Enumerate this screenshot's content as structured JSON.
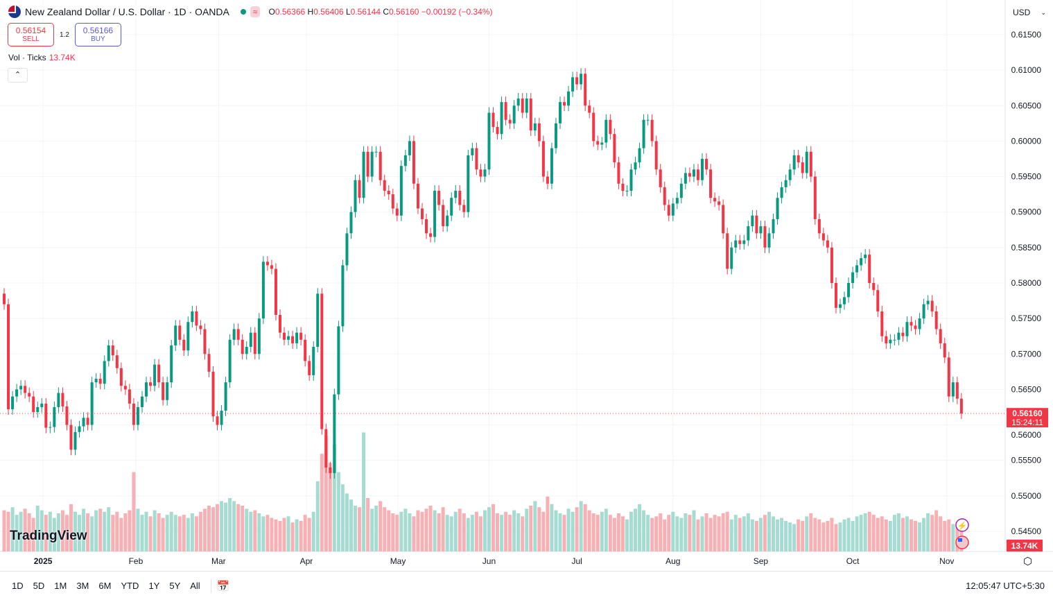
{
  "header": {
    "title": "New Zealand Dollar / U.S. Dollar · 1D · OANDA",
    "ohlc": {
      "o_label": "O",
      "o": "0.56366",
      "h_label": "H",
      "h": "0.56406",
      "l_label": "L",
      "l": "0.56144",
      "c_label": "C",
      "c": "0.56160",
      "change": "−0.00192 (−0.34%)"
    },
    "wave_icon": "≈"
  },
  "trade": {
    "sell_price": "0.56154",
    "sell_label": "SELL",
    "spread": "1.2",
    "buy_price": "0.56166",
    "buy_label": "BUY"
  },
  "volume_legend": {
    "label": "Vol · Ticks",
    "value": "13.74K"
  },
  "currency": {
    "value": "USD"
  },
  "bottom_bar": {
    "ranges": [
      "1D",
      "5D",
      "1M",
      "3M",
      "6M",
      "YTD",
      "1Y",
      "5Y",
      "All"
    ],
    "time": "12:05:47 UTC+5:30"
  },
  "logo": "TradingView",
  "colors": {
    "up": "#089981",
    "down": "#f23645",
    "vol_up": "#a6dbd1",
    "vol_down": "#f7b0b3",
    "last_price": "#f23645"
  },
  "chart_data": {
    "type": "candlestick",
    "symbol": "NZDUSD",
    "interval": "1D",
    "ylim": [
      0.5425,
      0.6175
    ],
    "y_ticks": [
      "0.61500",
      "0.61000",
      "0.60500",
      "0.60000",
      "0.59500",
      "0.59000",
      "0.58500",
      "0.58000",
      "0.57500",
      "0.57000",
      "0.56500",
      "0.56000",
      "0.55500",
      "0.55000",
      "0.54500"
    ],
    "x_tick_labels": [
      "2025",
      "Feb",
      "Mar",
      "Apr",
      "May",
      "Jun",
      "Jul",
      "Aug",
      "Sep",
      "Oct",
      "Nov"
    ],
    "grid": true,
    "last_price": "0.56160",
    "countdown": "15:24:11",
    "last_volume": "13.74K",
    "first_open": 0.5785,
    "close": [
      0.577,
      0.5622,
      0.564,
      0.565,
      0.5655,
      0.5645,
      0.564,
      0.5618,
      0.5625,
      0.563,
      0.5596,
      0.5597,
      0.5625,
      0.5645,
      0.5626,
      0.56,
      0.5565,
      0.559,
      0.5598,
      0.561,
      0.56,
      0.566,
      0.5665,
      0.5658,
      0.569,
      0.5712,
      0.5698,
      0.568,
      0.5655,
      0.565,
      0.563,
      0.56,
      0.5625,
      0.564,
      0.566,
      0.5655,
      0.5685,
      0.566,
      0.5635,
      0.566,
      0.5712,
      0.574,
      0.572,
      0.5705,
      0.5745,
      0.576,
      0.574,
      0.5735,
      0.57,
      0.5675,
      0.5612,
      0.56,
      0.562,
      0.566,
      0.572,
      0.5735,
      0.572,
      0.57,
      0.571,
      0.573,
      0.57,
      0.575,
      0.583,
      0.5825,
      0.582,
      0.5755,
      0.573,
      0.572,
      0.5725,
      0.5715,
      0.573,
      0.572,
      0.569,
      0.567,
      0.571,
      0.5785,
      0.5594,
      0.554,
      0.5532,
      0.5643,
      0.5739,
      0.5825,
      0.587,
      0.59,
      0.5945,
      0.592,
      0.5985,
      0.595,
      0.5985,
      0.5985,
      0.5945,
      0.593,
      0.5925,
      0.5905,
      0.5895,
      0.5965,
      0.598,
      0.6,
      0.594,
      0.5905,
      0.589,
      0.587,
      0.5865,
      0.593,
      0.591,
      0.588,
      0.5895,
      0.592,
      0.593,
      0.591,
      0.59,
      0.598,
      0.599,
      0.596,
      0.595,
      0.596,
      0.604,
      0.602,
      0.601,
      0.6055,
      0.603,
      0.6025,
      0.605,
      0.606,
      0.604,
      0.606,
      0.6015,
      0.6025,
      0.6,
      0.595,
      0.594,
      0.599,
      0.6025,
      0.6055,
      0.605,
      0.607,
      0.609,
      0.608,
      0.6095,
      0.605,
      0.604,
      0.6,
      0.5995,
      0.5998,
      0.603,
      0.601,
      0.597,
      0.594,
      0.593,
      0.593,
      0.596,
      0.597,
      0.599,
      0.603,
      0.603,
      0.6,
      0.596,
      0.5935,
      0.591,
      0.5895,
      0.5912,
      0.592,
      0.594,
      0.5955,
      0.595,
      0.596,
      0.5945,
      0.5975,
      0.596,
      0.592,
      0.5915,
      0.591,
      0.587,
      0.582,
      0.585,
      0.586,
      0.5855,
      0.586,
      0.588,
      0.5895,
      0.587,
      0.588,
      0.585,
      0.587,
      0.589,
      0.592,
      0.5935,
      0.5945,
      0.596,
      0.598,
      0.597,
      0.5955,
      0.5985,
      0.595,
      0.589,
      0.587,
      0.586,
      0.585,
      0.58,
      0.5765,
      0.577,
      0.578,
      0.58,
      0.5815,
      0.5825,
      0.5835,
      0.584,
      0.58,
      0.579,
      0.576,
      0.5725,
      0.5715,
      0.572,
      0.572,
      0.573,
      0.5725,
      0.5745,
      0.574,
      0.5735,
      0.575,
      0.577,
      0.5775,
      0.576,
      0.5735,
      0.5715,
      0.5695,
      0.564,
      0.566,
      0.5637,
      0.5616
    ],
    "volume_k": [
      27,
      26,
      29,
      24,
      26,
      28,
      25,
      22,
      30,
      27,
      24,
      26,
      22,
      25,
      27,
      24,
      31,
      26,
      24,
      28,
      25,
      23,
      27,
      28,
      26,
      29,
      24,
      26,
      22,
      25,
      27,
      52,
      28,
      24,
      26,
      23,
      27,
      25,
      22,
      24,
      26,
      24,
      23,
      24,
      22,
      25,
      23,
      26,
      28,
      30,
      29,
      31,
      33,
      32,
      35,
      33,
      31,
      30,
      28,
      26,
      27,
      25,
      23,
      24,
      22,
      21,
      20,
      22,
      23,
      19,
      21,
      20,
      24,
      22,
      26,
      46,
      64,
      76,
      58,
      70,
      52,
      44,
      38,
      34,
      30,
      29,
      78,
      35,
      28,
      30,
      33,
      29,
      27,
      25,
      24,
      26,
      28,
      25,
      23,
      27,
      26,
      28,
      30,
      27,
      25,
      29,
      24,
      23,
      26,
      28,
      25,
      22,
      24,
      26,
      23,
      27,
      29,
      31,
      25,
      24,
      26,
      24,
      27,
      25,
      23,
      28,
      30,
      33,
      29,
      26,
      36,
      31,
      27,
      25,
      24,
      28,
      26,
      29,
      33,
      31,
      27,
      25,
      24,
      26,
      28,
      24,
      22,
      25,
      23,
      21,
      26,
      28,
      31,
      27,
      24,
      22,
      23,
      25,
      21,
      24,
      26,
      23,
      22,
      25,
      24,
      27,
      21,
      23,
      25,
      22,
      24,
      23,
      25,
      26,
      21,
      24,
      22,
      23,
      25,
      21,
      20,
      22,
      24,
      26,
      23,
      21,
      22,
      20,
      19,
      18,
      21,
      20,
      23,
      25,
      22,
      21,
      19,
      20,
      22,
      18,
      19,
      21,
      22,
      20,
      23,
      24,
      25,
      26,
      24,
      22,
      23,
      21,
      20,
      24,
      25,
      22,
      23,
      21,
      20,
      19,
      22,
      25,
      24,
      27,
      23,
      20,
      21,
      18,
      19,
      13.74
    ]
  }
}
